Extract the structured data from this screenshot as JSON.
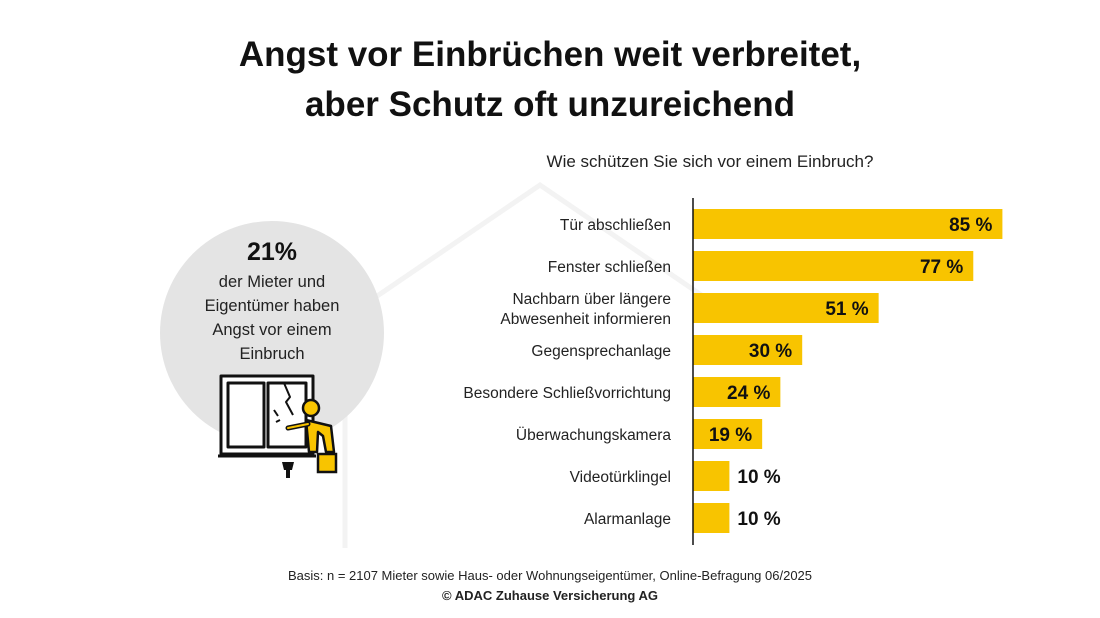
{
  "title_line1": "Angst vor Einbrüchen weit verbreitet,",
  "title_line2": "aber Schutz oft unzureichend",
  "highlight": {
    "percent": "21%",
    "line1": "der Mieter und",
    "line2": "Eigentümer haben",
    "line3": "Angst vor einem",
    "line4": "Einbruch"
  },
  "footer": {
    "basis": "Basis: n = 2107 Mieter sowie Haus- oder Wohnungseigentümer, Online-Befragung 06/2025",
    "copyright": "© ADAC Zuhause Versicherung AG"
  },
  "colors": {
    "bar": "#f8c400",
    "text": "#111111",
    "circle": "#e4e4e4"
  },
  "chart_data": {
    "type": "bar",
    "orientation": "horizontal",
    "title": "Wie schützen Sie sich vor einem Einbruch?",
    "categories": [
      "Tür abschließen",
      "Fenster schließen",
      "Nachbarn über längere Abwesenheit informieren",
      "Gegensprechanlage",
      "Besondere Schließvorrichtung",
      "Überwachungskamera",
      "Videotürklingel",
      "Alarmanlage"
    ],
    "category_lines": [
      [
        "Tür abschließen"
      ],
      [
        "Fenster schließen"
      ],
      [
        "Nachbarn über längere",
        "Abwesenheit informieren"
      ],
      [
        "Gegensprechanlage"
      ],
      [
        "Besondere Schließvorrichtung"
      ],
      [
        "Überwachungskamera"
      ],
      [
        "Videotürklingel"
      ],
      [
        "Alarmanlage"
      ]
    ],
    "values": [
      85,
      77,
      51,
      30,
      24,
      19,
      10,
      10
    ],
    "value_labels": [
      "85 %",
      "77 %",
      "51 %",
      "30 %",
      "24 %",
      "19 %",
      "10 %",
      "10 %"
    ],
    "unit": "%",
    "xlim": [
      0,
      100
    ],
    "grid": false,
    "legend": "none"
  }
}
